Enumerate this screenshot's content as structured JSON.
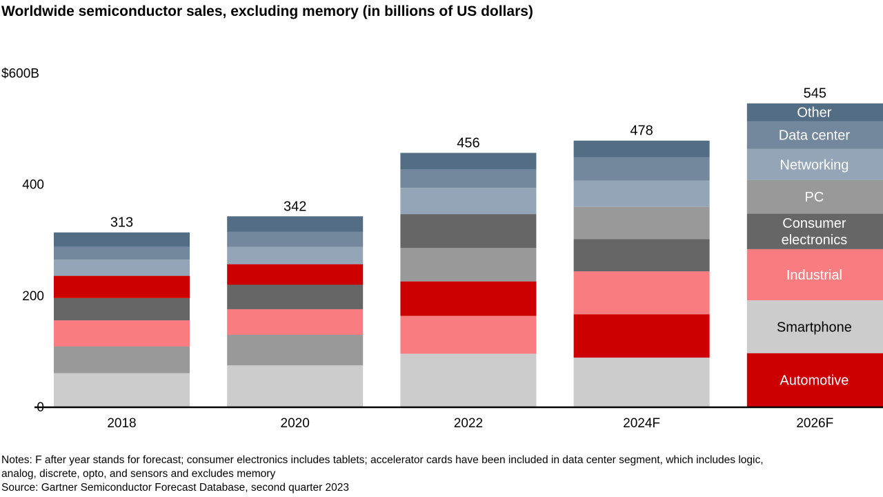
{
  "chart_data": {
    "type": "bar",
    "stacked": true,
    "title": "Worldwide semiconductor sales, excluding memory (in billions of US dollars)",
    "xlabel": "",
    "ylabel": "",
    "ylim": [
      0,
      600
    ],
    "y_ticks": [
      {
        "value": 0,
        "label": "0"
      },
      {
        "value": 200,
        "label": "200"
      },
      {
        "value": 400,
        "label": "400"
      },
      {
        "value": 600,
        "label": "$600B"
      }
    ],
    "grid": false,
    "legend": "inline labels on last bar",
    "categories": [
      "2018",
      "2020",
      "2022",
      "2024F",
      "2026F"
    ],
    "totals": [
      "313",
      "342",
      "456",
      "478",
      "545"
    ],
    "series": [
      {
        "name": "Automotive",
        "color": "#cc0000",
        "label_color": "#ffffff",
        "values": [
          40,
          37,
          62,
          78,
          96
        ]
      },
      {
        "name": "Smartphone",
        "color": "#cccccc",
        "label_color": "#000000",
        "values": [
          60,
          74,
          95,
          88,
          95
        ]
      },
      {
        "name": "Industrial",
        "color": "#f97d80",
        "label_color": "#ffffff",
        "values": [
          47,
          46,
          68,
          77,
          92
        ]
      },
      {
        "name": "Consumer electronics",
        "color": "#666666",
        "label_color": "#ffffff",
        "values": [
          40,
          44,
          61,
          58,
          64
        ]
      },
      {
        "name": "PC",
        "color": "#999999",
        "label_color": "#ffffff",
        "values": [
          48,
          55,
          60,
          58,
          60
        ]
      },
      {
        "name": "Networking",
        "color": "#93a5b6",
        "label_color": "#ffffff",
        "values": [
          29,
          31,
          47,
          47,
          56
        ]
      },
      {
        "name": "Data center",
        "color": "#73889d",
        "label_color": "#ffffff",
        "values": [
          23,
          27,
          33,
          42,
          50
        ]
      },
      {
        "name": "Other",
        "color": "#536d85",
        "label_color": "#ffffff",
        "values": [
          26,
          28,
          30,
          30,
          32
        ]
      }
    ],
    "stack_order_bottom_to_top": [
      [
        "Smartphone",
        "PC",
        "Industrial",
        "Consumer electronics",
        "Automotive",
        "Networking",
        "Data center",
        "Other"
      ],
      [
        "Smartphone",
        "PC",
        "Industrial",
        "Consumer electronics",
        "Automotive",
        "Networking",
        "Data center",
        "Other"
      ],
      [
        "Smartphone",
        "Industrial",
        "Automotive",
        "PC",
        "Consumer electronics",
        "Networking",
        "Data center",
        "Other"
      ],
      [
        "Smartphone",
        "Automotive",
        "Industrial",
        "Consumer electronics",
        "PC",
        "Networking",
        "Data center",
        "Other"
      ],
      [
        "Automotive",
        "Smartphone",
        "Industrial",
        "Consumer electronics",
        "PC",
        "Networking",
        "Data center",
        "Other"
      ]
    ]
  },
  "notes": {
    "line1": "Notes: F after year stands for forecast; consumer electronics includes tablets; accelerator cards have been included in data center segment, which includes logic,",
    "line2": "analog, discrete, opto, and sensors and excludes memory",
    "source": "Source: Gartner Semiconductor Forecast Database, second quarter 2023"
  }
}
